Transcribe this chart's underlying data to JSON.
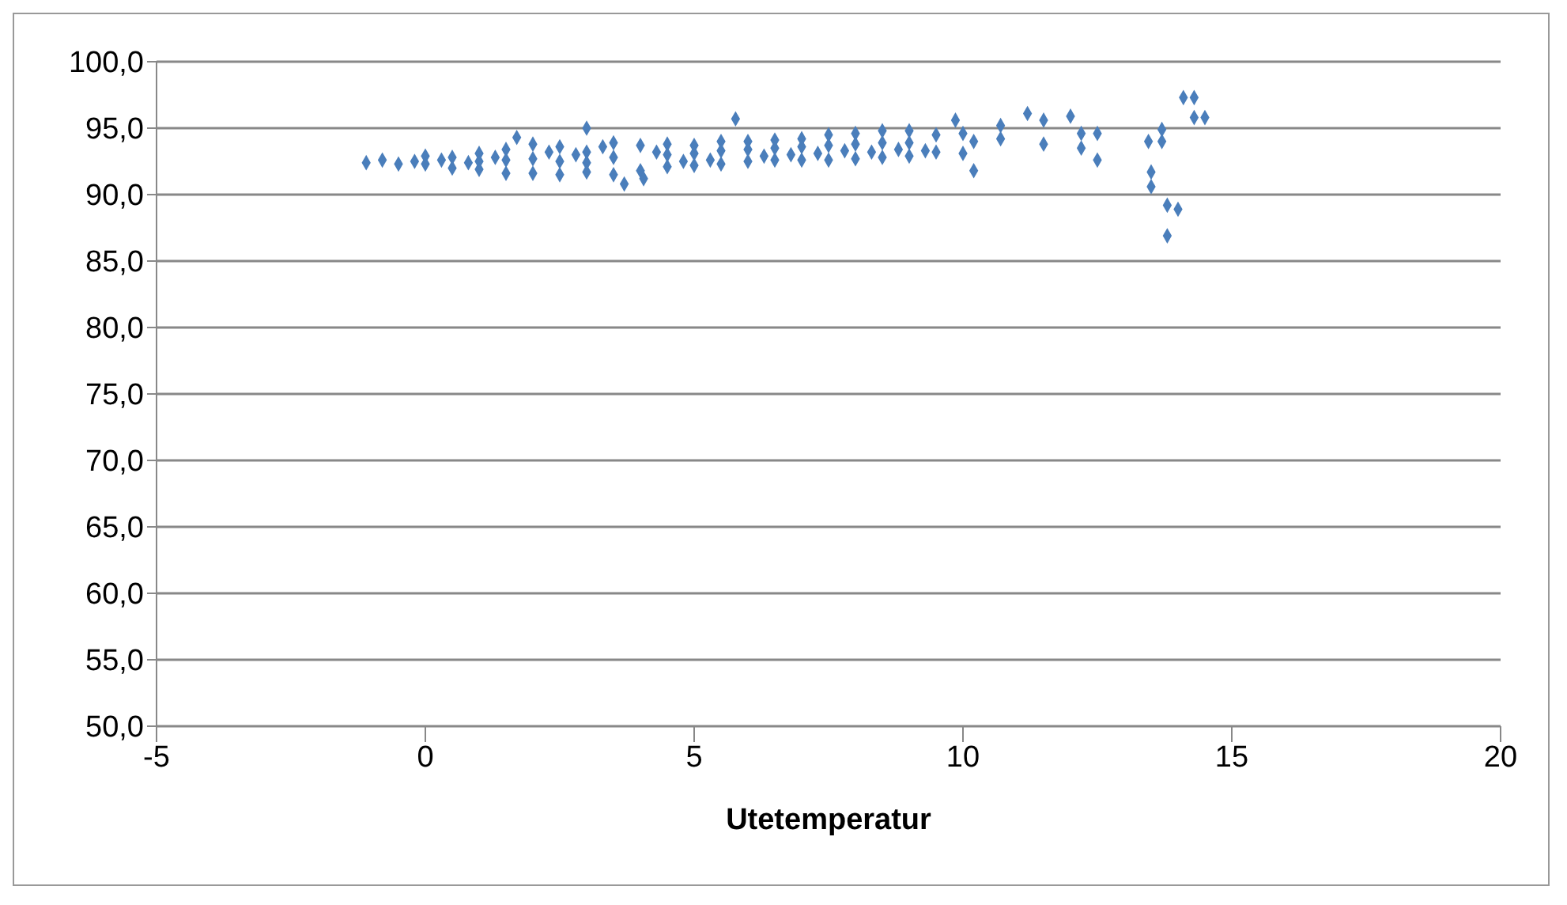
{
  "chart_data": {
    "type": "scatter",
    "xlabel": "Utetemperatur",
    "x": [
      -1.1,
      -0.8,
      -0.5,
      -0.2,
      0,
      0,
      0.3,
      0.5,
      0.5,
      0.8,
      1,
      1,
      1,
      1.3,
      1.5,
      1.5,
      1.5,
      1.7,
      2,
      2,
      2,
      2.3,
      2.5,
      2.5,
      2.5,
      2.8,
      3,
      3,
      3,
      3,
      3.3,
      3.5,
      3.5,
      3.5,
      3.7,
      4,
      4,
      4.06,
      4.3,
      4.5,
      4.5,
      4.5,
      4.8,
      5,
      5,
      5,
      5.3,
      5.5,
      5.5,
      5.5,
      5.77,
      6,
      6,
      6,
      6.3,
      6.5,
      6.5,
      6.5,
      6.8,
      7,
      7,
      7,
      7.3,
      7.5,
      7.5,
      7.5,
      7.8,
      8,
      8,
      8,
      8.3,
      8.5,
      8.5,
      8.5,
      8.8,
      9,
      9,
      9,
      9.3,
      9.5,
      9.5,
      9.86,
      10,
      10,
      10.2,
      10.2,
      10.7,
      10.7,
      11.2,
      11.5,
      11.5,
      12,
      12.2,
      12.2,
      12.5,
      12.5,
      13.45,
      13.5,
      13.5,
      13.7,
      13.7,
      13.8,
      13.8,
      14,
      14.1,
      14.3,
      14.3,
      14.5
    ],
    "values": [
      92.4,
      92.6,
      92.3,
      92.5,
      92.9,
      92.3,
      92.6,
      92.8,
      92.0,
      92.4,
      93.1,
      91.9,
      92.5,
      92.8,
      93.4,
      91.6,
      92.6,
      94.3,
      93.8,
      91.6,
      92.7,
      93.2,
      93.6,
      91.5,
      92.5,
      93.0,
      95.0,
      91.7,
      93.2,
      92.4,
      93.6,
      93.9,
      91.5,
      92.8,
      90.8,
      93.7,
      91.8,
      91.2,
      93.2,
      93.8,
      92.1,
      93.0,
      92.5,
      93.7,
      92.2,
      93.1,
      92.6,
      94.0,
      92.3,
      93.3,
      95.7,
      94.0,
      92.5,
      93.4,
      92.9,
      94.1,
      92.6,
      93.5,
      93.0,
      94.2,
      92.6,
      93.6,
      93.1,
      94.5,
      92.6,
      93.7,
      93.3,
      94.6,
      92.7,
      93.8,
      93.2,
      94.8,
      92.8,
      93.9,
      93.4,
      94.8,
      92.9,
      93.9,
      93.3,
      94.5,
      93.2,
      95.6,
      94.6,
      93.1,
      94.0,
      91.8,
      95.2,
      94.2,
      96.1,
      95.6,
      93.8,
      95.9,
      94.6,
      93.5,
      94.6,
      92.6,
      94.0,
      91.7,
      90.6,
      94.0,
      94.9,
      86.9,
      89.2,
      88.9,
      97.3,
      97.3,
      95.8,
      95.8
    ],
    "color": "#4a7ebb",
    "marker": "diamond",
    "xlim": [
      -5,
      20
    ],
    "xticks": [
      -5,
      0,
      5,
      10,
      15,
      20
    ],
    "ylim": [
      50,
      100
    ],
    "yticks": [
      {
        "value": 50,
        "label": "50,0"
      },
      {
        "value": 55,
        "label": "55,0"
      },
      {
        "value": 60,
        "label": "60,0"
      },
      {
        "value": 65,
        "label": "65,0"
      },
      {
        "value": 70,
        "label": "70,0"
      },
      {
        "value": 75,
        "label": "75,0"
      },
      {
        "value": 80,
        "label": "80,0"
      },
      {
        "value": 85,
        "label": "85,0"
      },
      {
        "value": 90,
        "label": "90,0"
      },
      {
        "value": 95,
        "label": "95,0"
      },
      {
        "value": 100,
        "label": "100,0"
      }
    ],
    "grid": "y",
    "legend": false
  }
}
